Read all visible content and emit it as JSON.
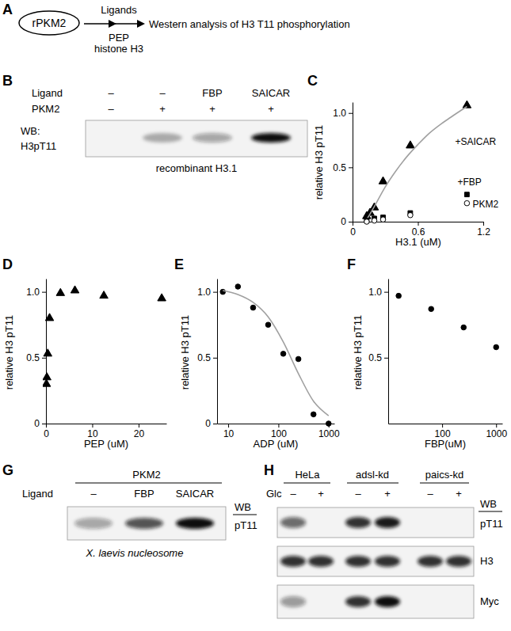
{
  "panels": [
    "A",
    "B",
    "C",
    "D",
    "E",
    "F",
    "G",
    "H"
  ],
  "diagram": {
    "protein": "rPKM2",
    "step1": "Ligands",
    "step2": [
      "PEP",
      "histone H3"
    ],
    "readout": "Western analysis of H3 T11 phosphorylation"
  },
  "blot_b": {
    "rows": [
      {
        "label": "Ligand",
        "values": [
          "–",
          "–",
          "FBP",
          "SAICAR"
        ]
      },
      {
        "label": "PKM2",
        "values": [
          "–",
          "+",
          "+",
          "+"
        ]
      }
    ],
    "wb_label": [
      "WB:",
      "H3pT11"
    ],
    "bands": [
      0,
      0.3,
      0.35,
      1.0
    ],
    "caption": "recombinant H3.1"
  },
  "blot_g": {
    "header": "PKM2",
    "rows": [
      {
        "label": "Ligand",
        "values": [
          "–",
          "FBP",
          "SAICAR"
        ]
      }
    ],
    "wb_label": [
      "WB",
      "pT11"
    ],
    "bands": [
      0.35,
      0.7,
      1.0
    ],
    "caption": "X. laevis nucleosome"
  },
  "blot_h": {
    "groups": [
      "HeLa",
      "adsl-kd",
      "paics-kd"
    ],
    "rows": [
      {
        "label": "Glc",
        "values": [
          "–",
          "+",
          "–",
          "+",
          "–",
          "+"
        ]
      }
    ],
    "wb_label": "WB",
    "strips": [
      {
        "label": "pT11",
        "bands": [
          0.6,
          0,
          0.85,
          0.95,
          0,
          0
        ]
      },
      {
        "label": "H3",
        "bands": [
          0.85,
          0.85,
          0.85,
          0.85,
          0.85,
          0.85
        ]
      },
      {
        "label": "Myc",
        "bands": [
          0.4,
          0,
          0.85,
          1.0,
          0,
          0
        ]
      }
    ]
  },
  "chart_data": [
    {
      "type": "scatter",
      "x_label": "H3.1 (uM)",
      "y_label": "relative H3 pT11",
      "xlim": [
        0,
        1.2
      ],
      "xticks": [
        0,
        0.6,
        1.2
      ],
      "ylim": [
        0,
        1.1
      ],
      "yticks": [
        0,
        0.5,
        {
          "value": 1,
          "label": "1.0"
        }
      ],
      "series": [
        {
          "name": "+SAICAR",
          "marker": "triangle",
          "color": "#000000",
          "x": [
            0.13,
            0.16,
            0.2,
            0.28,
            0.53,
            1.05
          ],
          "values": [
            0.05,
            0.08,
            0.13,
            0.37,
            0.7,
            1.07
          ]
        },
        {
          "type": "line",
          "color": "#a0a0a0",
          "x": [
            0.13,
            0.2,
            0.3,
            0.4,
            0.5,
            0.6,
            0.7,
            0.8,
            0.9,
            1.05
          ],
          "values": [
            0.02,
            0.14,
            0.32,
            0.47,
            0.6,
            0.71,
            0.81,
            0.89,
            0.96,
            1.06
          ]
        },
        {
          "name": "+FBP",
          "marker": "square",
          "color": "#000000",
          "x": [
            0.13,
            0.2,
            0.28,
            0.53,
            1.05
          ],
          "values": [
            0.01,
            0.03,
            0.04,
            0.08,
            0.25
          ]
        },
        {
          "name": "PKM2",
          "marker": "circle-open",
          "color": "#000000",
          "x": [
            0.13,
            0.2,
            0.28,
            0.53,
            1.05
          ],
          "values": [
            0,
            0.01,
            0.02,
            0.06,
            0.17
          ]
        }
      ]
    },
    {
      "type": "scatter",
      "x_label": "PEP (uM)",
      "y_label": "relative H3 pT11",
      "xlim": [
        0,
        26
      ],
      "xticks": [
        0,
        10,
        20
      ],
      "ylim": [
        0,
        1.1
      ],
      "yticks": [
        0,
        0.5,
        {
          "value": 1,
          "label": "1.0"
        }
      ],
      "series": [
        {
          "marker": "triangle",
          "color": "#000000",
          "x": [
            0.1,
            0.2,
            0.39,
            0.78,
            3.13,
            6.25,
            12.5,
            25
          ],
          "values": [
            0.3,
            0.35,
            0.53,
            0.8,
            0.99,
            1.01,
            0.97,
            0.95
          ]
        }
      ]
    },
    {
      "type": "scatter",
      "log": "x",
      "x_label": "ADP (uM)",
      "y_label": "relative H3 pT11",
      "xlim": [
        6,
        1300
      ],
      "xticks": [
        10,
        100,
        1000
      ],
      "ylim": [
        0,
        1.1
      ],
      "yticks": [
        0,
        0.5,
        {
          "value": 1,
          "label": "1.0"
        }
      ],
      "series": [
        {
          "marker": "circle",
          "color": "#000000",
          "x": [
            7.8,
            15.6,
            31.3,
            62.5,
            125,
            250,
            500,
            1000
          ],
          "values": [
            1.0,
            1.04,
            0.88,
            0.75,
            0.53,
            0.49,
            0.07,
            0
          ]
        },
        {
          "type": "line",
          "color": "#a0a0a0",
          "x": [
            7.8,
            15.6,
            31.3,
            62.5,
            125,
            250,
            500,
            1000
          ],
          "values": [
            1.01,
            0.98,
            0.92,
            0.81,
            0.62,
            0.38,
            0.17,
            0.06
          ]
        }
      ]
    },
    {
      "type": "scatter",
      "log": "x",
      "x_label": "FBP(uM)",
      "y_label": "relative H3 pT11",
      "xlim": [
        10,
        1300
      ],
      "xticks": [
        100,
        1000
      ],
      "ylim": [
        0,
        1.1
      ],
      "yticks": [
        0.5,
        {
          "value": 1,
          "label": "1.0"
        }
      ],
      "series": [
        {
          "marker": "circle",
          "color": "#000000",
          "x": [
            15.6,
            62.5,
            250,
            1000
          ],
          "values": [
            0.97,
            0.87,
            0.73,
            0.58
          ]
        }
      ]
    }
  ]
}
